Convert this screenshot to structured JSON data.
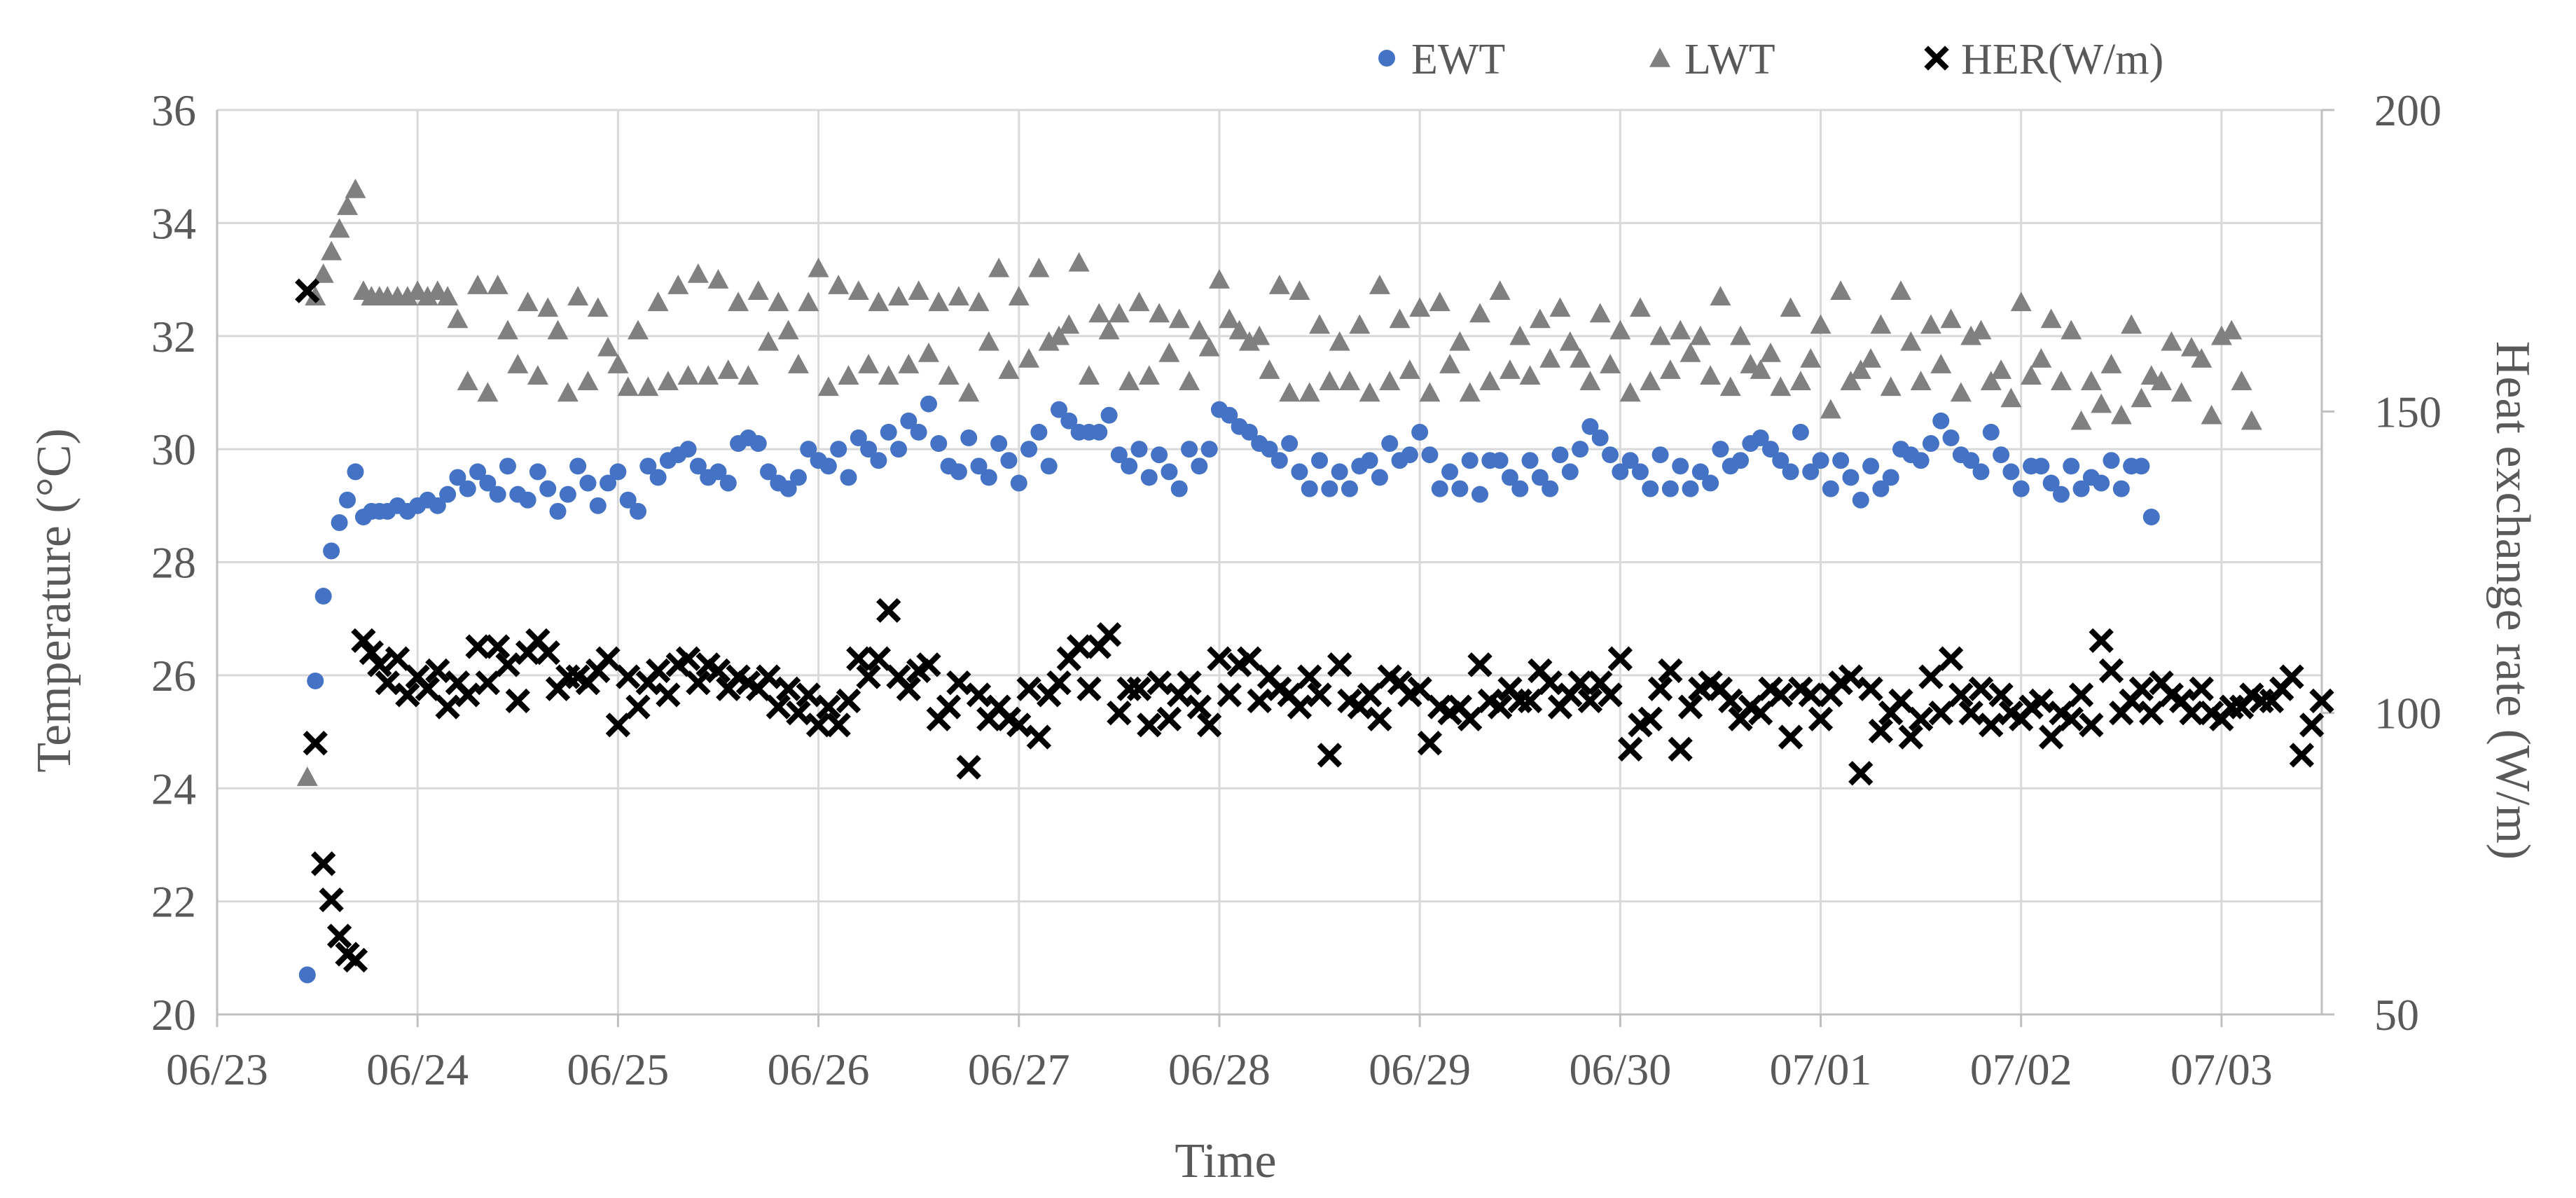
{
  "chart_data": {
    "type": "scatter",
    "xlabel": "Time",
    "ylabel": "Temperature (°C)",
    "y2label": "Heat exchange rate (W/m)",
    "x_ticks": [
      "06/23",
      "06/24",
      "06/25",
      "06/26",
      "06/27",
      "06/28",
      "06/29",
      "06/30",
      "07/01",
      "07/02",
      "07/03"
    ],
    "x_range_days": [
      "06/23",
      "07/03 + 0.5 day"
    ],
    "ylim": [
      20,
      36
    ],
    "yticks": [
      20,
      22,
      24,
      26,
      28,
      30,
      32,
      34,
      36
    ],
    "y2lim": [
      50,
      200
    ],
    "y2ticks": [
      50,
      100,
      150,
      200
    ],
    "grid": true,
    "legend_position": "top",
    "series": [
      {
        "name": "EWT",
        "axis": "left",
        "marker": "circle",
        "color": "#4472c4",
        "x_days_from_0623": [
          0.45,
          0.49,
          0.53,
          0.57,
          0.61,
          0.65,
          0.69,
          0.73,
          0.77,
          0.81,
          0.85,
          0.9,
          0.95,
          1.0,
          1.05,
          1.1,
          1.15,
          1.2,
          1.25,
          1.3,
          1.35,
          1.4,
          1.45,
          1.5,
          1.55,
          1.6,
          1.65,
          1.7,
          1.75,
          1.8,
          1.85,
          1.9,
          1.95,
          2.0,
          2.05,
          2.1,
          2.15,
          2.2,
          2.25,
          2.3,
          2.35,
          2.4,
          2.45,
          2.5,
          2.55,
          2.6,
          2.65,
          2.7,
          2.75,
          2.8,
          2.85,
          2.9,
          2.95,
          3.0,
          3.05,
          3.1,
          3.15,
          3.2,
          3.25,
          3.3,
          3.35,
          3.4,
          3.45,
          3.5,
          3.55,
          3.6,
          3.65,
          3.7,
          3.75,
          3.8,
          3.85,
          3.9,
          3.95,
          4.0,
          4.05,
          4.1,
          4.15,
          4.2,
          4.25,
          4.3,
          4.35,
          4.4,
          4.45,
          4.5,
          4.55,
          4.6,
          4.65,
          4.7,
          4.75,
          4.8,
          4.85,
          4.9,
          4.95,
          5.0,
          5.05,
          5.1,
          5.15,
          5.2,
          5.25,
          5.3,
          5.35,
          5.4,
          5.45,
          5.5,
          5.55,
          5.6,
          5.65,
          5.7,
          5.75,
          5.8,
          5.85,
          5.9,
          5.95,
          6.0,
          6.05,
          6.1,
          6.15,
          6.2,
          6.25,
          6.3,
          6.35,
          6.4,
          6.45,
          6.5,
          6.55,
          6.6,
          6.65,
          6.7,
          6.75,
          6.8,
          6.85,
          6.9,
          6.95,
          7.0,
          7.05,
          7.1,
          7.15,
          7.2,
          7.25,
          7.3,
          7.35,
          7.4,
          7.45,
          7.5,
          7.55,
          7.6,
          7.65,
          7.7,
          7.75,
          7.8,
          7.85,
          7.9,
          7.95,
          8.0,
          8.05,
          8.1,
          8.15,
          8.2,
          8.25,
          8.3,
          8.35,
          8.4,
          8.45,
          8.5,
          8.55,
          8.6,
          8.65,
          8.7,
          8.75,
          8.8,
          8.85,
          8.9,
          8.95,
          9.0,
          9.05,
          9.1,
          9.15,
          9.2,
          9.25,
          9.3,
          9.35,
          9.4,
          9.45,
          9.5,
          9.55,
          9.6,
          9.65,
          9.7,
          9.75,
          9.8,
          9.85,
          9.9,
          9.95,
          10.0,
          10.05,
          10.1,
          10.15,
          10.2,
          10.25,
          10.3,
          10.35,
          10.4,
          10.45,
          10.5
        ],
        "y": [
          20.7,
          25.9,
          27.4,
          28.2,
          28.7,
          29.1,
          29.6,
          28.8,
          28.9,
          28.9,
          28.9,
          29.0,
          28.9,
          29.0,
          29.1,
          29.0,
          29.2,
          29.5,
          29.3,
          29.6,
          29.4,
          29.2,
          29.7,
          29.2,
          29.1,
          29.6,
          29.3,
          28.9,
          29.2,
          29.7,
          29.4,
          29.0,
          29.4,
          29.6,
          29.1,
          28.9,
          29.7,
          29.5,
          29.8,
          29.9,
          30.0,
          29.7,
          29.5,
          29.6,
          29.4,
          30.1,
          30.2,
          30.1,
          29.6,
          29.4,
          29.3,
          29.5,
          30.0,
          29.8,
          29.7,
          30.0,
          29.5,
          30.2,
          30.0,
          29.8,
          30.3,
          30.0,
          30.5,
          30.3,
          30.8,
          30.1,
          29.7,
          29.6,
          30.2,
          29.7,
          29.5,
          30.1,
          29.8,
          29.4,
          30.0,
          30.3,
          29.7,
          30.7,
          30.5,
          30.3,
          30.3,
          30.3,
          30.6,
          29.9,
          29.7,
          30.0,
          29.5,
          29.9,
          29.6,
          29.3,
          30.0,
          29.7,
          30.0,
          30.7,
          30.6,
          30.4,
          30.3,
          30.1,
          30.0,
          29.8,
          30.1,
          29.6,
          29.3,
          29.8,
          29.3,
          29.6,
          29.3,
          29.7,
          29.8,
          29.5,
          30.1,
          29.8,
          29.9,
          30.3,
          29.9,
          29.3,
          29.6,
          29.3,
          29.8,
          29.2,
          29.8,
          29.8,
          29.5,
          29.3,
          29.8,
          29.5,
          29.3,
          29.9,
          29.6,
          30.0,
          30.4,
          30.2,
          29.9,
          29.6,
          29.8,
          29.6,
          29.3,
          29.9,
          29.3,
          29.7,
          29.3,
          29.6,
          29.4,
          30.0,
          29.7,
          29.8,
          30.1,
          30.2,
          30.0,
          29.8,
          29.6,
          30.3,
          29.6,
          29.8,
          29.3,
          29.8,
          29.5,
          29.1,
          29.7,
          29.3,
          29.5,
          30.0,
          29.9,
          29.8,
          30.1,
          30.5,
          30.2,
          29.9,
          29.8,
          29.6,
          30.3,
          29.9,
          29.6,
          29.3,
          29.7,
          29.7,
          29.4,
          29.2,
          29.7,
          29.3,
          29.5,
          29.4,
          29.8,
          29.3,
          29.7,
          29.7,
          28.8
        ]
      },
      {
        "name": "LWT",
        "axis": "left",
        "marker": "triangle",
        "color": "#808080",
        "x_days_from_0623": [
          0.45,
          0.49,
          0.53,
          0.57,
          0.61,
          0.65,
          0.69,
          0.73,
          0.77,
          0.81,
          0.85,
          0.9,
          0.95,
          1.0,
          1.05,
          1.1,
          1.15,
          1.2,
          1.25,
          1.3,
          1.35,
          1.4,
          1.45,
          1.5,
          1.55,
          1.6,
          1.65,
          1.7,
          1.75,
          1.8,
          1.85,
          1.9,
          1.95,
          2.0,
          2.05,
          2.1,
          2.15,
          2.2,
          2.25,
          2.3,
          2.35,
          2.4,
          2.45,
          2.5,
          2.55,
          2.6,
          2.65,
          2.7,
          2.75,
          2.8,
          2.85,
          2.9,
          2.95,
          3.0,
          3.05,
          3.1,
          3.15,
          3.2,
          3.25,
          3.3,
          3.35,
          3.4,
          3.45,
          3.5,
          3.55,
          3.6,
          3.65,
          3.7,
          3.75,
          3.8,
          3.85,
          3.9,
          3.95,
          4.0,
          4.05,
          4.1,
          4.15,
          4.2,
          4.25,
          4.3,
          4.35,
          4.4,
          4.45,
          4.5,
          4.55,
          4.6,
          4.65,
          4.7,
          4.75,
          4.8,
          4.85,
          4.9,
          4.95,
          5.0,
          5.05,
          5.1,
          5.15,
          5.2,
          5.25,
          5.3,
          5.35,
          5.4,
          5.45,
          5.5,
          5.55,
          5.6,
          5.65,
          5.7,
          5.75,
          5.8,
          5.85,
          5.9,
          5.95,
          6.0,
          6.05,
          6.1,
          6.15,
          6.2,
          6.25,
          6.3,
          6.35,
          6.4,
          6.45,
          6.5,
          6.55,
          6.6,
          6.65,
          6.7,
          6.75,
          6.8,
          6.85,
          6.9,
          6.95,
          7.0,
          7.05,
          7.1,
          7.15,
          7.2,
          7.25,
          7.3,
          7.35,
          7.4,
          7.45,
          7.5,
          7.55,
          7.6,
          7.65,
          7.7,
          7.75,
          7.8,
          7.85,
          7.9,
          7.95,
          8.0,
          8.05,
          8.1,
          8.15,
          8.2,
          8.25,
          8.3,
          8.35,
          8.4,
          8.45,
          8.5,
          8.55,
          8.6,
          8.65,
          8.7,
          8.75,
          8.8,
          8.85,
          8.9,
          8.95,
          9.0,
          9.05,
          9.1,
          9.15,
          9.2,
          9.25,
          9.3,
          9.35,
          9.4,
          9.45,
          9.5,
          9.55,
          9.6,
          9.65,
          9.7,
          9.75,
          9.8,
          9.85,
          9.9,
          9.95,
          10.0,
          10.05,
          10.1,
          10.15,
          10.2,
          10.25,
          10.3,
          10.35,
          10.4,
          10.45,
          10.5
        ],
        "y": [
          24.2,
          32.7,
          33.1,
          33.5,
          33.9,
          34.3,
          34.6,
          32.8,
          32.7,
          32.7,
          32.7,
          32.7,
          32.7,
          32.8,
          32.7,
          32.8,
          32.7,
          32.3,
          31.2,
          32.9,
          31.0,
          32.9,
          32.1,
          31.5,
          32.6,
          31.3,
          32.5,
          32.1,
          31.0,
          32.7,
          31.2,
          32.5,
          31.8,
          31.5,
          31.1,
          32.1,
          31.1,
          32.6,
          31.2,
          32.9,
          31.3,
          33.1,
          31.3,
          33.0,
          31.4,
          32.6,
          31.3,
          32.8,
          31.9,
          32.6,
          32.1,
          31.5,
          32.6,
          33.2,
          31.1,
          32.9,
          31.3,
          32.8,
          31.5,
          32.6,
          31.3,
          32.7,
          31.5,
          32.8,
          31.7,
          32.6,
          31.3,
          32.7,
          31.0,
          32.6,
          31.9,
          33.2,
          31.4,
          32.7,
          31.6,
          33.2,
          31.9,
          32.0,
          32.2,
          33.3,
          31.3,
          32.4,
          32.1,
          32.4,
          31.2,
          32.6,
          31.3,
          32.4,
          31.7,
          32.3,
          31.2,
          32.1,
          31.8,
          33.0,
          32.3,
          32.1,
          31.9,
          32.0,
          31.4,
          32.9,
          31.0,
          32.8,
          31.0,
          32.2,
          31.2,
          31.9,
          31.2,
          32.2,
          31.0,
          32.9,
          31.2,
          32.3,
          31.4,
          32.5,
          31.0,
          32.6,
          31.5,
          31.9,
          31.0,
          32.4,
          31.2,
          32.8,
          31.4,
          32.0,
          31.3,
          32.3,
          31.6,
          32.5,
          31.9,
          31.6,
          31.2,
          32.4,
          31.5,
          32.1,
          31.0,
          32.5,
          31.2,
          32.0,
          31.4,
          32.1,
          31.7,
          32.0,
          31.3,
          32.7,
          31.1,
          32.0,
          31.5,
          31.4,
          31.7,
          31.1,
          32.5,
          31.2,
          31.6,
          32.2,
          30.7,
          32.8,
          31.2,
          31.4,
          31.6,
          32.2,
          31.1,
          32.8,
          31.9,
          31.2,
          32.2,
          31.5,
          32.3,
          31.0,
          32.0,
          32.1,
          31.2,
          31.4,
          30.9,
          32.6,
          31.3,
          31.6,
          32.3,
          31.2,
          32.1,
          30.5,
          31.2,
          30.8,
          31.5,
          30.6,
          32.2,
          30.9,
          31.3,
          31.2,
          31.9,
          31.0,
          31.8,
          31.6,
          30.6,
          32.0,
          32.1,
          31.2,
          30.5
        ]
      },
      {
        "name": "HER(W/m)",
        "axis": "right",
        "marker": "x",
        "color": "#000000",
        "x_days_from_0623": [
          0.45,
          0.49,
          0.53,
          0.57,
          0.61,
          0.65,
          0.69,
          0.73,
          0.77,
          0.81,
          0.85,
          0.9,
          0.95,
          1.0,
          1.05,
          1.1,
          1.15,
          1.2,
          1.25,
          1.3,
          1.35,
          1.4,
          1.45,
          1.5,
          1.55,
          1.6,
          1.65,
          1.7,
          1.75,
          1.8,
          1.85,
          1.9,
          1.95,
          2.0,
          2.05,
          2.1,
          2.15,
          2.2,
          2.25,
          2.3,
          2.35,
          2.4,
          2.45,
          2.5,
          2.55,
          2.6,
          2.65,
          2.7,
          2.75,
          2.8,
          2.85,
          2.9,
          2.95,
          3.0,
          3.05,
          3.1,
          3.15,
          3.2,
          3.25,
          3.3,
          3.35,
          3.4,
          3.45,
          3.5,
          3.55,
          3.6,
          3.65,
          3.7,
          3.75,
          3.8,
          3.85,
          3.9,
          3.95,
          4.0,
          4.05,
          4.1,
          4.15,
          4.2,
          4.25,
          4.3,
          4.35,
          4.4,
          4.45,
          4.5,
          4.55,
          4.6,
          4.65,
          4.7,
          4.75,
          4.8,
          4.85,
          4.9,
          4.95,
          5.0,
          5.05,
          5.1,
          5.15,
          5.2,
          5.25,
          5.3,
          5.35,
          5.4,
          5.45,
          5.5,
          5.55,
          5.6,
          5.65,
          5.7,
          5.75,
          5.8,
          5.85,
          5.9,
          5.95,
          6.0,
          6.05,
          6.1,
          6.15,
          6.2,
          6.25,
          6.3,
          6.35,
          6.4,
          6.45,
          6.5,
          6.55,
          6.6,
          6.65,
          6.7,
          6.75,
          6.8,
          6.85,
          6.9,
          6.95,
          7.0,
          7.05,
          7.1,
          7.15,
          7.2,
          7.25,
          7.3,
          7.35,
          7.4,
          7.45,
          7.5,
          7.55,
          7.6,
          7.65,
          7.7,
          7.75,
          7.8,
          7.85,
          7.9,
          7.95,
          8.0,
          8.05,
          8.1,
          8.15,
          8.2,
          8.25,
          8.3,
          8.35,
          8.4,
          8.45,
          8.5,
          8.55,
          8.6,
          8.65,
          8.7,
          8.75,
          8.8,
          8.85,
          8.9,
          8.95,
          9.0,
          9.05,
          9.1,
          9.15,
          9.2,
          9.25,
          9.3,
          9.35,
          9.4,
          9.45,
          9.5,
          9.55,
          9.6,
          9.65,
          9.7,
          9.75,
          9.8,
          9.85,
          9.9,
          9.95,
          10.0,
          10.05,
          10.1,
          10.15,
          10.2,
          10.25,
          10.3,
          10.35,
          10.4,
          10.45,
          10.5
        ],
        "y": [
          170,
          95,
          75,
          69,
          63,
          60,
          59,
          112,
          110,
          108,
          105,
          109,
          103,
          106,
          104,
          107,
          101,
          105,
          103,
          111,
          105,
          111,
          108,
          102,
          110,
          112,
          110,
          104,
          106,
          106,
          105,
          107,
          109,
          98,
          106,
          101,
          105,
          107,
          103,
          108,
          109,
          105,
          108,
          107,
          104,
          106,
          105,
          104,
          106,
          101,
          104,
          100,
          103,
          98,
          101,
          98,
          102,
          109,
          106,
          109,
          117,
          106,
          104,
          107,
          108,
          99,
          101,
          105,
          91,
          103,
          99,
          101,
          99,
          98,
          104,
          96,
          103,
          105,
          109,
          111,
          104,
          111,
          113,
          100,
          104,
          104,
          98,
          105,
          99,
          103,
          105,
          101,
          98,
          109,
          103,
          108,
          109,
          102,
          106,
          104,
          103,
          101,
          106,
          103,
          93,
          108,
          102,
          101,
          103,
          99,
          106,
          105,
          103,
          104,
          95,
          101,
          100,
          101,
          99,
          108,
          102,
          101,
          104,
          102,
          102,
          107,
          105,
          101,
          103,
          105,
          102,
          105,
          103,
          109,
          94,
          98,
          99,
          104,
          107,
          94,
          101,
          104,
          105,
          104,
          102,
          99,
          101,
          100,
          104,
          103,
          96,
          104,
          103,
          99,
          103,
          105,
          106,
          90,
          104,
          97,
          100,
          102,
          96,
          99,
          106,
          100,
          109,
          103,
          100,
          104,
          98,
          103,
          100,
          99,
          101,
          102,
          96,
          100,
          99,
          103,
          98,
          112,
          107,
          100,
          102,
          104,
          100,
          105,
          103,
          102,
          100,
          104,
          100,
          99,
          101,
          101,
          103,
          102,
          102,
          104,
          106,
          93,
          98,
          102,
          109
        ]
      }
    ]
  }
}
